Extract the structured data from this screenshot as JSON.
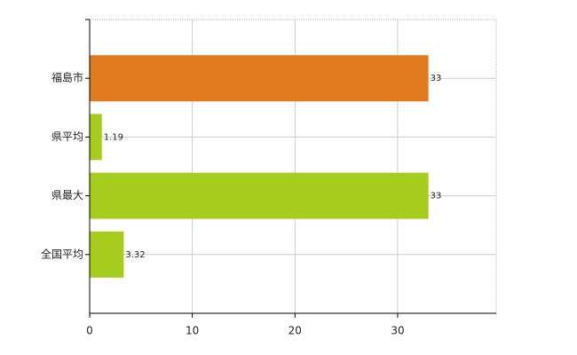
{
  "chart_data": {
    "type": "barh",
    "categories": [
      "福島市",
      "県平均",
      "県最大",
      "全国平均"
    ],
    "values": [
      33,
      1.19,
      33,
      3.32
    ],
    "colors": [
      "#e07b1f",
      "#a6cc1d",
      "#a6cc1d",
      "#a6cc1d"
    ],
    "xlim": [
      0,
      39.6
    ],
    "xticks": [
      0,
      10,
      20,
      30
    ],
    "grid": true
  }
}
